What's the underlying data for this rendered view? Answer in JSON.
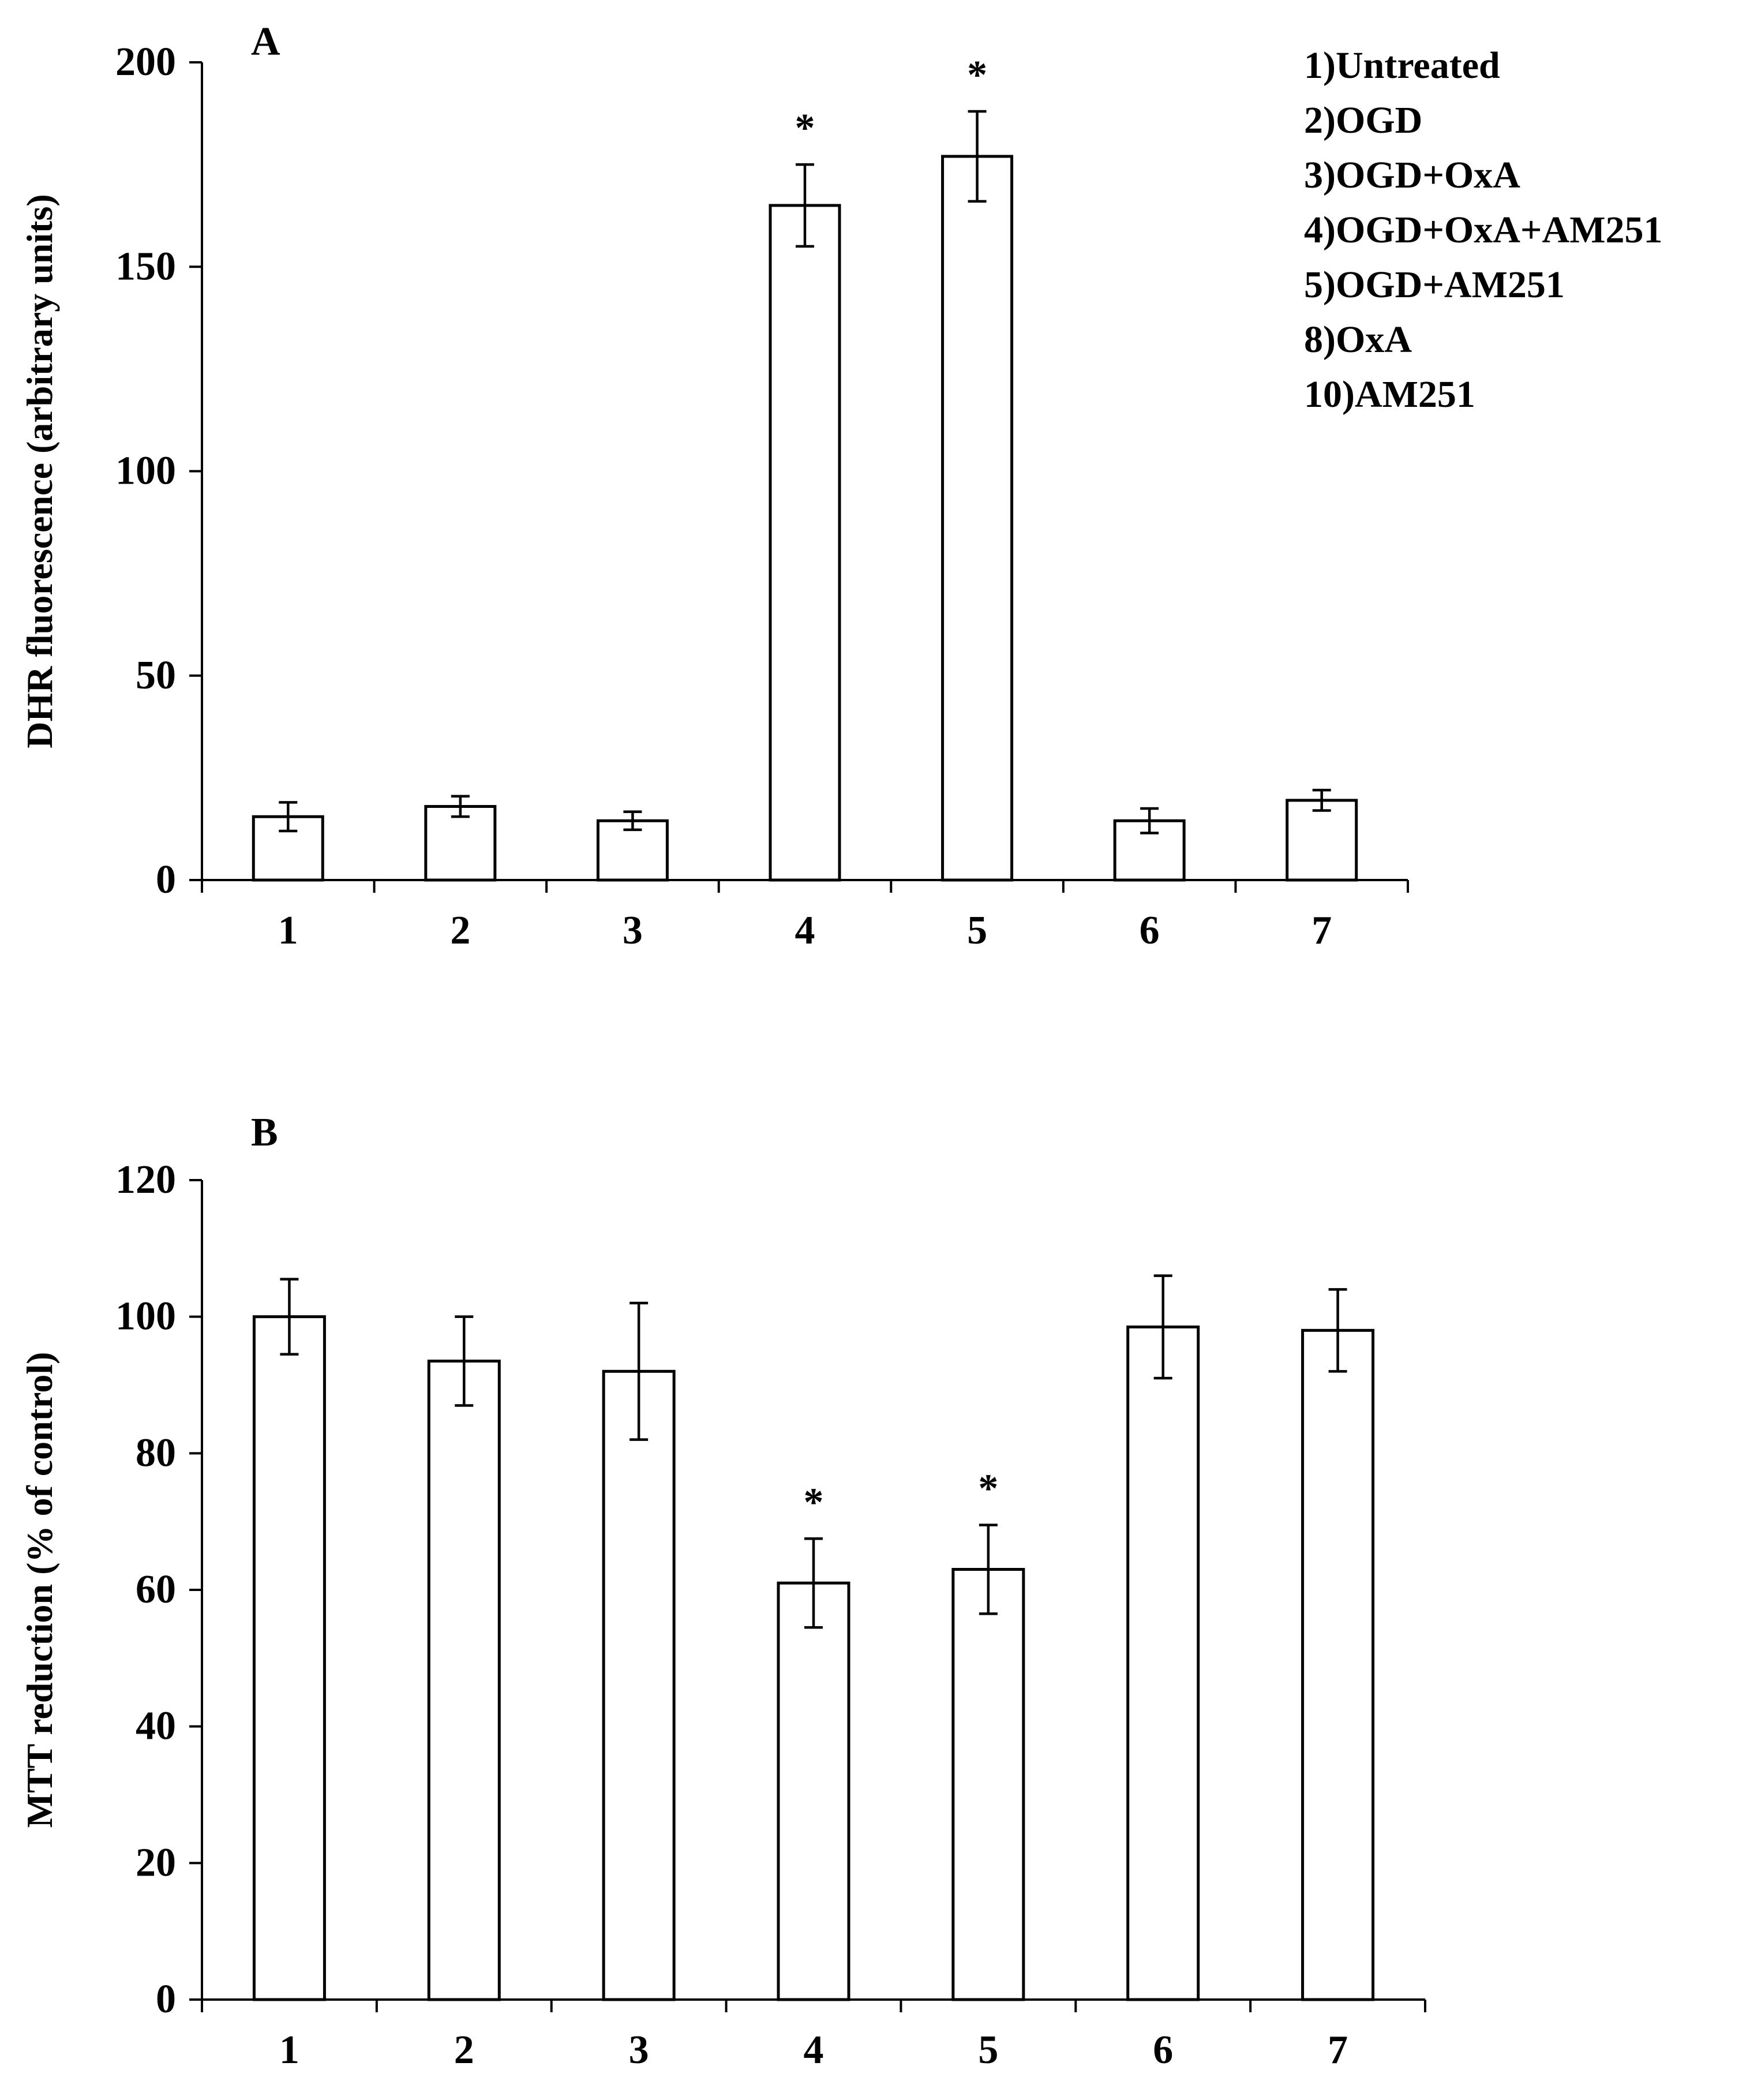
{
  "chart_data": [
    {
      "type": "bar",
      "panel_label": "A",
      "title": "",
      "xlabel": "",
      "ylabel": "DHR fluorescence (arbitrary units)",
      "categories": [
        "1",
        "2",
        "3",
        "4",
        "5",
        "6",
        "7"
      ],
      "values": [
        15.5,
        18,
        14.5,
        165,
        177,
        14.5,
        19.5
      ],
      "errors": [
        3.5,
        2.5,
        2.2,
        10,
        11,
        3,
        2.5
      ],
      "significance": [
        "",
        "",
        "",
        "*",
        "*",
        "",
        ""
      ],
      "ylim": [
        0,
        200
      ],
      "yticks": [
        0,
        50,
        100,
        150,
        200
      ],
      "grid": false,
      "legend": {
        "placement": "top-right",
        "entries": [
          "1)Untreated",
          "2)OGD",
          "3)OGD+OxA",
          "4)OGD+OxA+AM251",
          "5)OGD+AM251",
          "8)OxA",
          "10)AM251"
        ]
      }
    },
    {
      "type": "bar",
      "panel_label": "B",
      "title": "",
      "xlabel": "",
      "ylabel": "MTT reduction (% of control)",
      "categories": [
        "1",
        "2",
        "3",
        "4",
        "5",
        "6",
        "7"
      ],
      "values": [
        100,
        93.5,
        92,
        61,
        63,
        98.5,
        98
      ],
      "errors": [
        5.5,
        6.5,
        10,
        6.5,
        6.5,
        7.5,
        6
      ],
      "significance": [
        "",
        "",
        "",
        "*",
        "*",
        "",
        ""
      ],
      "ylim": [
        0,
        120
      ],
      "yticks": [
        0,
        20,
        40,
        60,
        80,
        100,
        120
      ],
      "grid": false
    }
  ]
}
